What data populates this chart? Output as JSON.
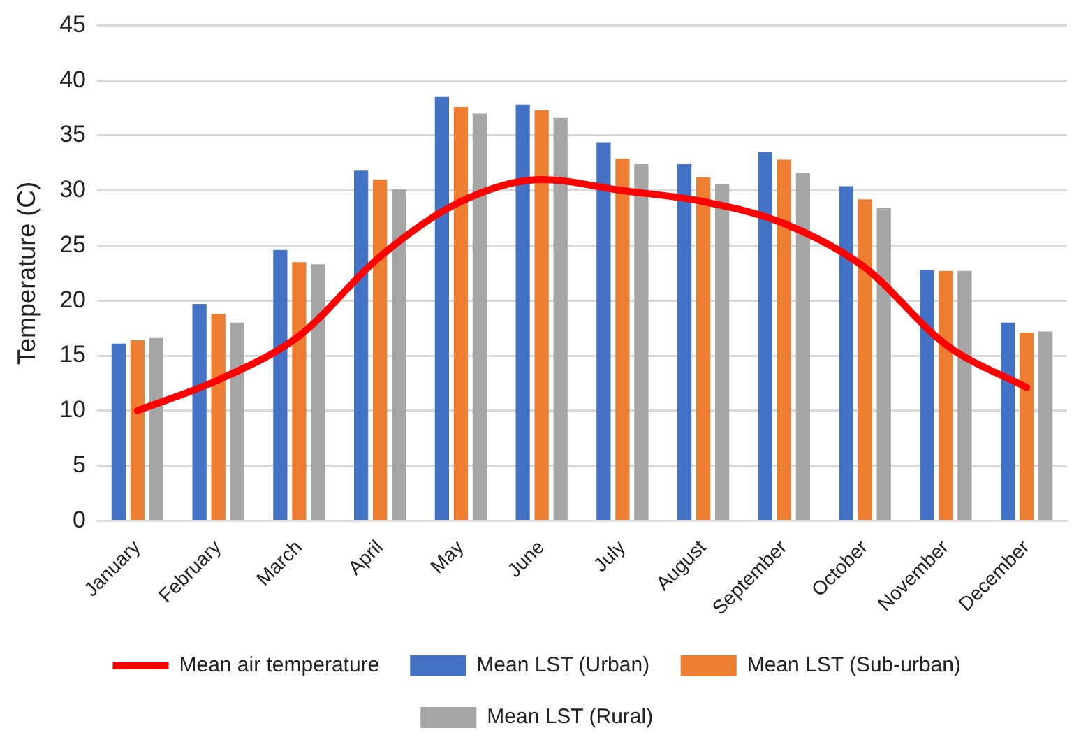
{
  "chart_data": {
    "type": "bar",
    "ylabel": "Temperature (C)",
    "categories": [
      "January",
      "February",
      "March",
      "April",
      "May",
      "June",
      "July",
      "August",
      "September",
      "October",
      "November",
      "December"
    ],
    "series": [
      {
        "name": "Mean LST (Urban)",
        "color": "#4472c4",
        "values": [
          16.1,
          19.7,
          24.6,
          31.8,
          38.5,
          37.8,
          34.4,
          32.4,
          33.5,
          30.4,
          22.8,
          18.0
        ]
      },
      {
        "name": "Mean LST (Sub-urban)",
        "color": "#ed7d31",
        "values": [
          16.4,
          18.8,
          23.5,
          31.0,
          37.6,
          37.3,
          32.9,
          31.2,
          32.8,
          29.2,
          22.7,
          17.1
        ]
      },
      {
        "name": "Mean LST (Rural)",
        "color": "#a5a5a5",
        "values": [
          16.6,
          18.0,
          23.3,
          30.1,
          37.0,
          36.6,
          32.4,
          30.6,
          31.6,
          28.4,
          22.7,
          17.2
        ]
      },
      {
        "name": "Mean air temperature",
        "type": "line",
        "color": "#ff0000",
        "values": [
          10,
          12.8,
          16.8,
          24,
          29,
          31,
          30,
          29,
          27,
          23,
          16,
          12.1
        ]
      }
    ],
    "ylim": [
      0,
      45
    ],
    "yticks": [
      0,
      5,
      10,
      15,
      20,
      25,
      30,
      35,
      40,
      45
    ],
    "grid": "y",
    "legend": "bottom",
    "marker": "none"
  }
}
